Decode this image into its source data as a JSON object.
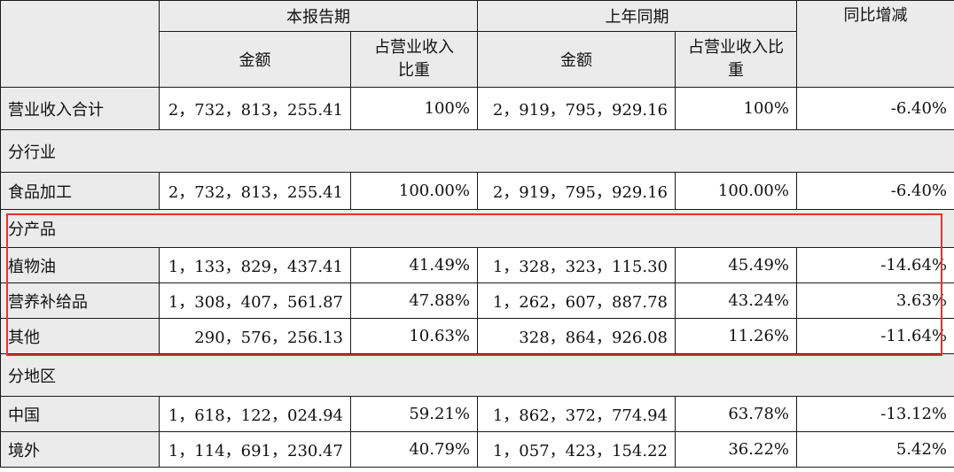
{
  "header": {
    "current_period": "本报告期",
    "prior_period": "上年同期",
    "yoy_change": "同比增减",
    "amount": "金额",
    "share_of_revenue": "占营业收入比重"
  },
  "total_row": {
    "label": "营业收入合计",
    "cur_amount": "2，732，813，255.41",
    "cur_share": "100%",
    "prev_amount": "2，919，795，929.16",
    "prev_share": "100%",
    "yoy": "-6.40%"
  },
  "sections": [
    {
      "title": "分行业",
      "rows": [
        {
          "label": "食品加工",
          "cur_amount": "2，732，813，255.41",
          "cur_share": "100.00%",
          "prev_amount": "2，919，795，929.16",
          "prev_share": "100.00%",
          "yoy": "-6.40%"
        }
      ]
    },
    {
      "title": "分产品",
      "rows": [
        {
          "label": "植物油",
          "cur_amount": "1，133，829，437.41",
          "cur_share": "41.49%",
          "prev_amount": "1，328，323，115.30",
          "prev_share": "45.49%",
          "yoy": "-14.64%"
        },
        {
          "label": "营养补给品",
          "cur_amount": "1，308，407，561.87",
          "cur_share": "47.88%",
          "prev_amount": "1，262，607，887.78",
          "prev_share": "43.24%",
          "yoy": "3.63%"
        },
        {
          "label": "其他",
          "cur_amount": "290，576，256.13",
          "cur_share": "10.63%",
          "prev_amount": "328，864，926.08",
          "prev_share": "11.26%",
          "yoy": "-11.64%"
        }
      ]
    },
    {
      "title": "分地区",
      "rows": [
        {
          "label": "中国",
          "cur_amount": "1，618，122，024.94",
          "cur_share": "59.21%",
          "prev_amount": "1，862，372，774.94",
          "prev_share": "63.78%",
          "yoy": "-13.12%"
        },
        {
          "label": "境外",
          "cur_amount": "1，114，691，230.47",
          "cur_share": "40.79%",
          "prev_amount": "1，057，423，154.22",
          "prev_share": "36.22%",
          "yoy": "5.42%"
        }
      ]
    }
  ],
  "highlight_color": "#e8332a"
}
